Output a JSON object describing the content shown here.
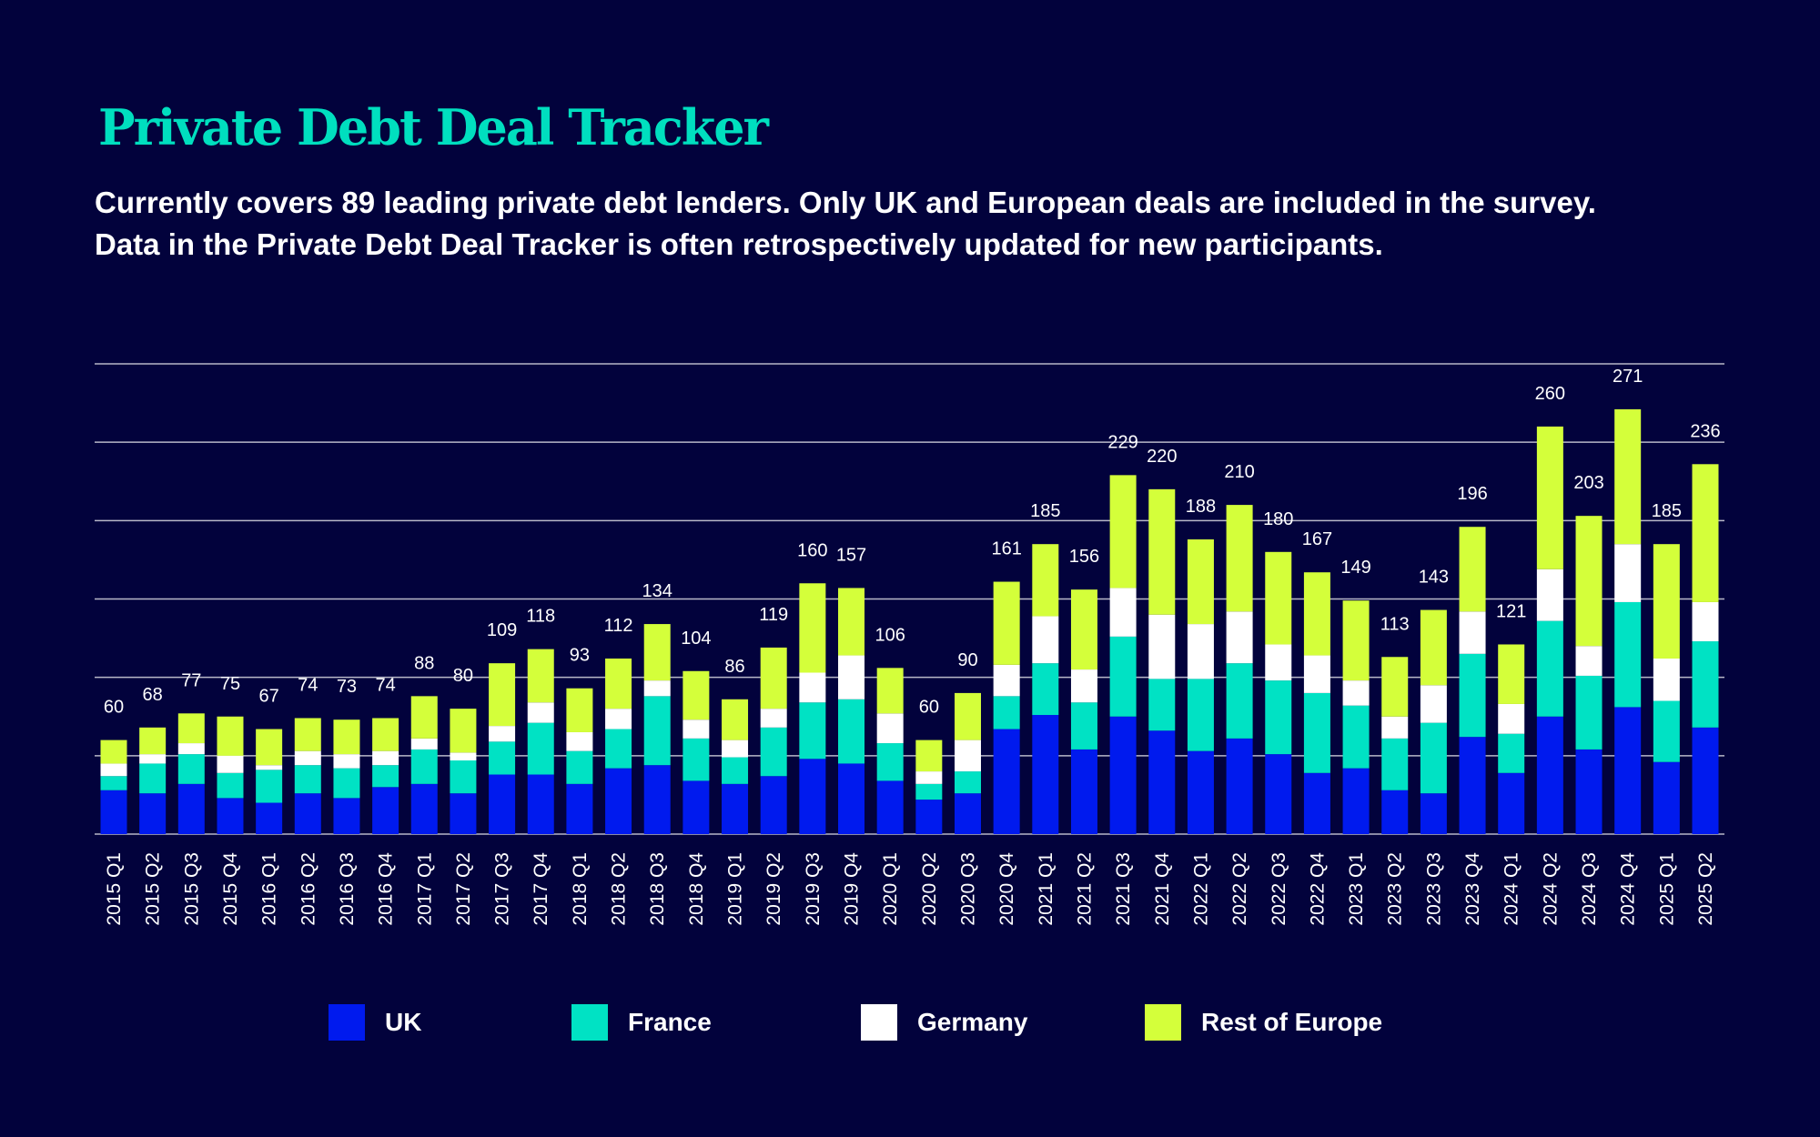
{
  "title": "Private Debt Deal Tracker",
  "subtitle_lines": [
    "Currently covers 89 leading private debt lenders. Only UK and European deals are included in the survey.",
    "Data in the Private Debt Deal Tracker is often retrospectively updated for new participants."
  ],
  "colors": {
    "background": "#02023c",
    "title": "#00dfbf",
    "UK": "#001aee",
    "France": "#00e2c4",
    "Germany": "#ffffff",
    "Rest of Europe": "#d4ff3a",
    "grid": "#b8b8c8"
  },
  "chart_data": {
    "type": "bar",
    "stacked": true,
    "title": "",
    "xlabel": "",
    "ylabel": "",
    "ylim": [
      0,
      300
    ],
    "grid": true,
    "grid_step": 50,
    "y_tick_labels_shown": false,
    "legend_position": "bottom",
    "categories": [
      "2015 Q1",
      "2015 Q2",
      "2015 Q3",
      "2015 Q4",
      "2016 Q1",
      "2016 Q2",
      "2016 Q3",
      "2016 Q4",
      "2017 Q1",
      "2017 Q2",
      "2017 Q3",
      "2017 Q4",
      "2018 Q1",
      "2018 Q2",
      "2018 Q3",
      "2018 Q4",
      "2019 Q1",
      "2019 Q2",
      "2019 Q3",
      "2019 Q4",
      "2020 Q1",
      "2020 Q2",
      "2020 Q3",
      "2020 Q4",
      "2021 Q1",
      "2021 Q2",
      "2021 Q3",
      "2021 Q4",
      "2022 Q1",
      "2022 Q2",
      "2022 Q3",
      "2022 Q4",
      "2023 Q1",
      "2023 Q2",
      "2023 Q3",
      "2023 Q4",
      "2024 Q1",
      "2024 Q2",
      "2024 Q3",
      "2024 Q4",
      "2025 Q1",
      "2025 Q2"
    ],
    "totals": [
      60,
      68,
      77,
      75,
      67,
      74,
      73,
      74,
      88,
      80,
      109,
      118,
      93,
      112,
      134,
      104,
      86,
      119,
      160,
      157,
      106,
      60,
      90,
      161,
      185,
      156,
      229,
      220,
      188,
      210,
      180,
      167,
      149,
      113,
      143,
      196,
      121,
      260,
      203,
      271,
      185,
      236
    ],
    "series": [
      {
        "name": "UK",
        "values": [
          28,
          26,
          32,
          23,
          20,
          26,
          23,
          30,
          32,
          26,
          38,
          38,
          32,
          42,
          44,
          34,
          32,
          37,
          48,
          45,
          34,
          22,
          26,
          67,
          76,
          54,
          75,
          66,
          53,
          61,
          51,
          39,
          42,
          28,
          26,
          62,
          39,
          75,
          54,
          81,
          46,
          68
        ]
      },
      {
        "name": "France",
        "values": [
          9,
          19,
          19,
          16,
          21,
          18,
          19,
          14,
          22,
          21,
          21,
          33,
          21,
          25,
          44,
          27,
          17,
          31,
          36,
          41,
          24,
          10,
          14,
          21,
          33,
          30,
          51,
          33,
          46,
          48,
          47,
          51,
          40,
          33,
          45,
          53,
          25,
          61,
          47,
          67,
          39,
          55
        ]
      },
      {
        "name": "Germany",
        "values": [
          8,
          6,
          7,
          11,
          3,
          9,
          9,
          9,
          7,
          5,
          10,
          13,
          12,
          13,
          10,
          12,
          11,
          12,
          19,
          28,
          19,
          8,
          20,
          20,
          30,
          21,
          31,
          41,
          35,
          33,
          23,
          24,
          16,
          14,
          24,
          27,
          19,
          33,
          19,
          37,
          27,
          25
        ]
      },
      {
        "name": "Rest of Europe",
        "values": [
          15,
          17,
          19,
          25,
          23,
          21,
          22,
          21,
          27,
          28,
          40,
          34,
          28,
          32,
          36,
          31,
          26,
          39,
          57,
          43,
          29,
          20,
          30,
          53,
          46,
          51,
          72,
          80,
          54,
          68,
          59,
          53,
          51,
          38,
          48,
          54,
          38,
          91,
          83,
          86,
          73,
          88
        ]
      }
    ]
  },
  "legend": [
    {
      "label": "UK"
    },
    {
      "label": "France"
    },
    {
      "label": "Germany"
    },
    {
      "label": "Rest of Europe"
    }
  ]
}
